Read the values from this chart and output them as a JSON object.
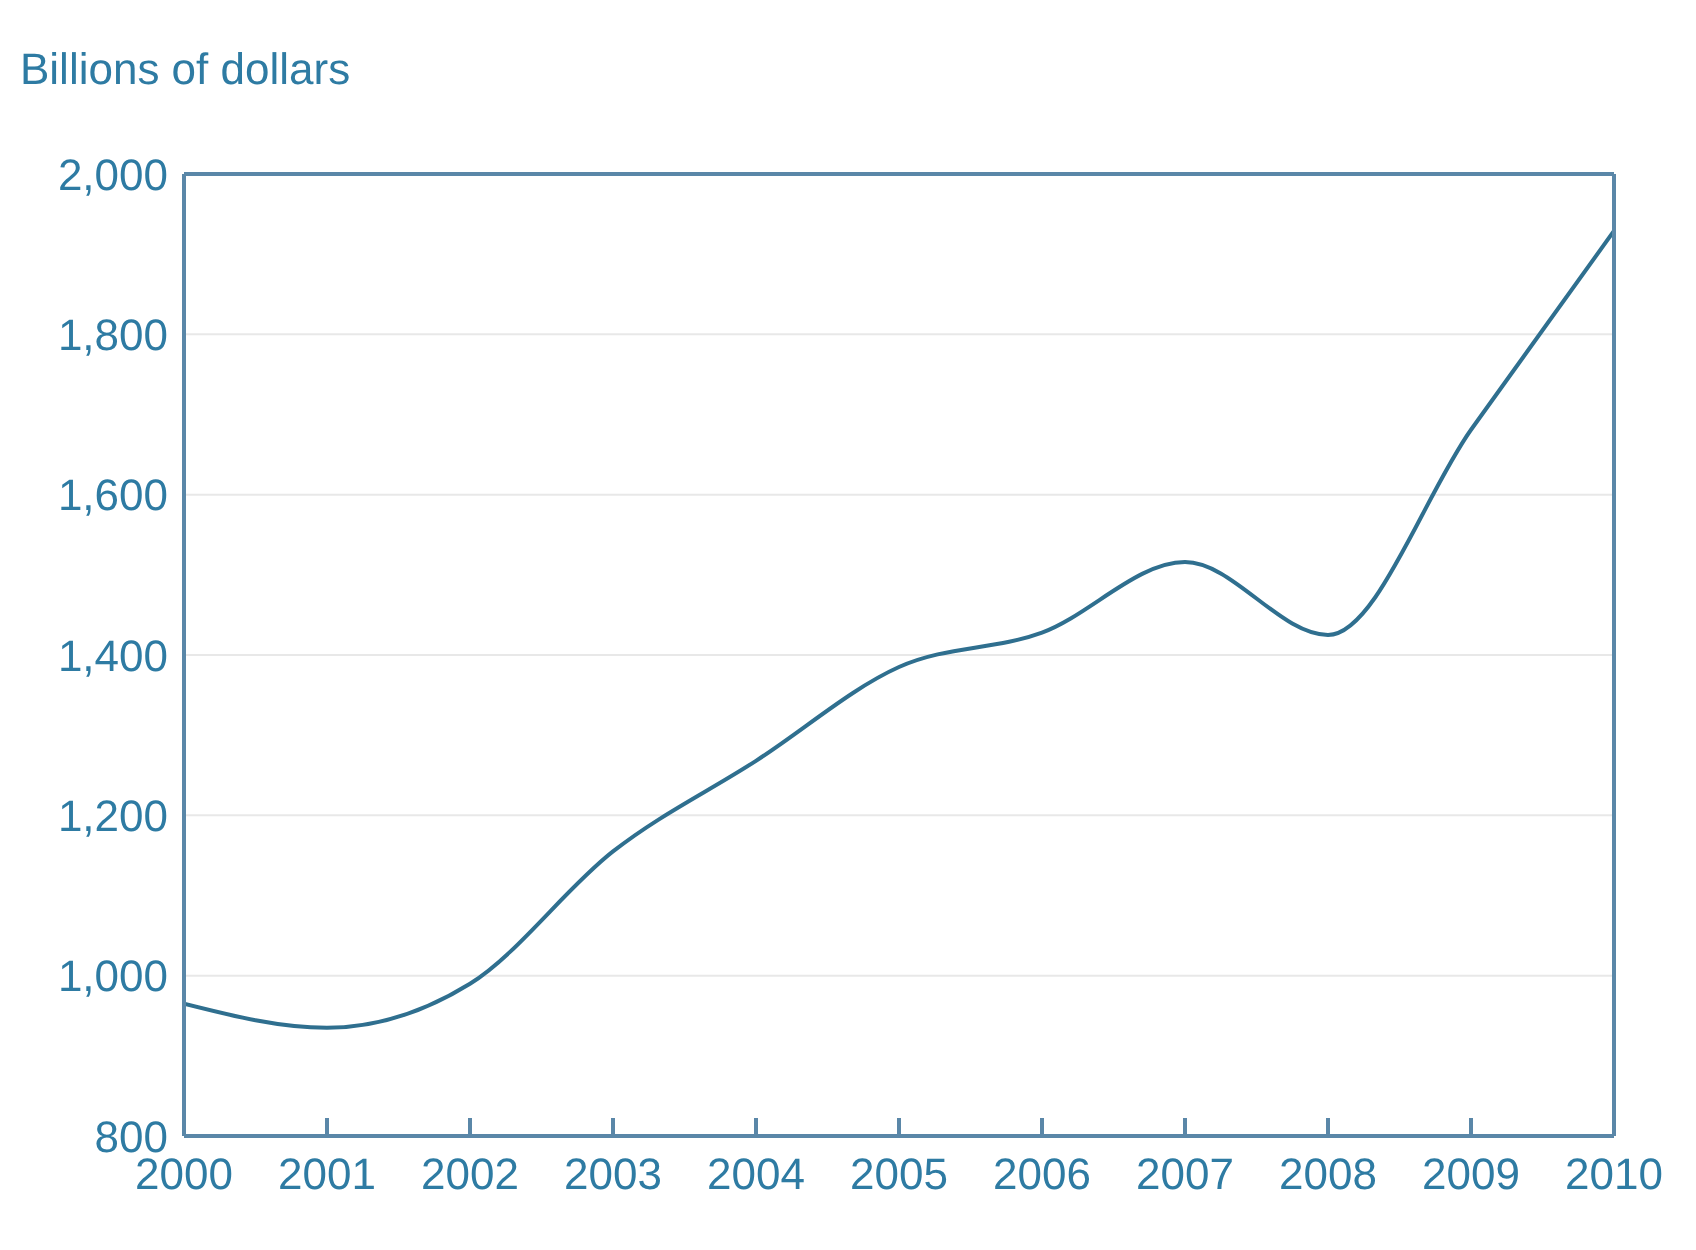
{
  "chart_data": {
    "type": "line",
    "ylabel": "Billions of dollars",
    "x": [
      2000,
      2001,
      2002,
      2003,
      2004,
      2005,
      2006,
      2007,
      2008,
      2009,
      2010
    ],
    "series": [
      {
        "color": "#2f6f8f",
        "values": [
          965,
          935,
          990,
          1155,
          1268,
          1385,
          1428,
          1516,
          1425,
          1681,
          1929
        ]
      }
    ],
    "xlim": [
      2000,
      2010
    ],
    "xticks": [
      2000,
      2001,
      2002,
      2003,
      2004,
      2005,
      2006,
      2007,
      2008,
      2009,
      2010
    ],
    "ylim": [
      800,
      2000
    ],
    "yticks": [
      800,
      {
        "value": 1000,
        "label": "1,000"
      },
      {
        "value": 1200,
        "label": "1,200"
      },
      {
        "value": 1400,
        "label": "1,400"
      },
      {
        "value": 1600,
        "label": "1,600"
      },
      {
        "value": 1800,
        "label": "1,800"
      },
      {
        "value": 2000,
        "label": "2,000"
      }
    ],
    "grid": "y",
    "legend": false,
    "marker": "none",
    "line_style": "solid"
  }
}
